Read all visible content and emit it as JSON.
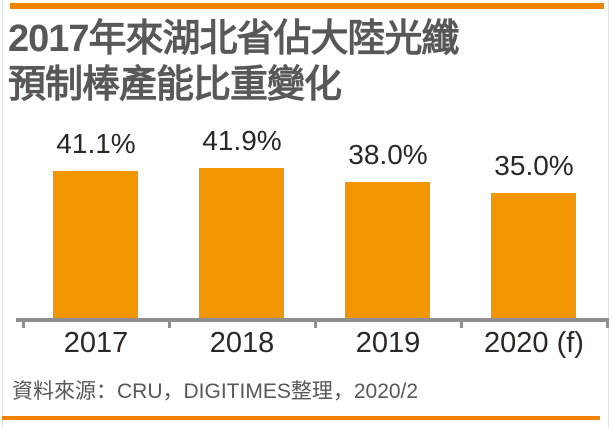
{
  "title": {
    "line1": "2017年來湖北省佔大陸光纖",
    "line2": "預制棒產能比重變化"
  },
  "source_note": "資料來源：CRU，DIGITIMES整理，2020/2",
  "colors": {
    "accent_rule_orange": "#F08300",
    "bar_orange": "#F29600",
    "axis_gray": "#8F8F8F",
    "title_gray": "#595757",
    "label_dark": "#2B2725"
  },
  "chart_data": {
    "type": "bar",
    "title": "2017年來湖北省佔大陸光纖預制棒產能比重變化",
    "categories": [
      "2017",
      "2018",
      "2019",
      "2020 (f)"
    ],
    "values": [
      41.1,
      41.9,
      38.0,
      35.0
    ],
    "value_labels": [
      "41.1%",
      "41.9%",
      "38.0%",
      "35.0%"
    ],
    "unit": "%",
    "xlabel": "",
    "ylabel": "",
    "ylim": [
      0,
      45
    ],
    "grid": false,
    "legend": null,
    "bar_color": "#F29600",
    "value_labels_position": "above-bars"
  }
}
